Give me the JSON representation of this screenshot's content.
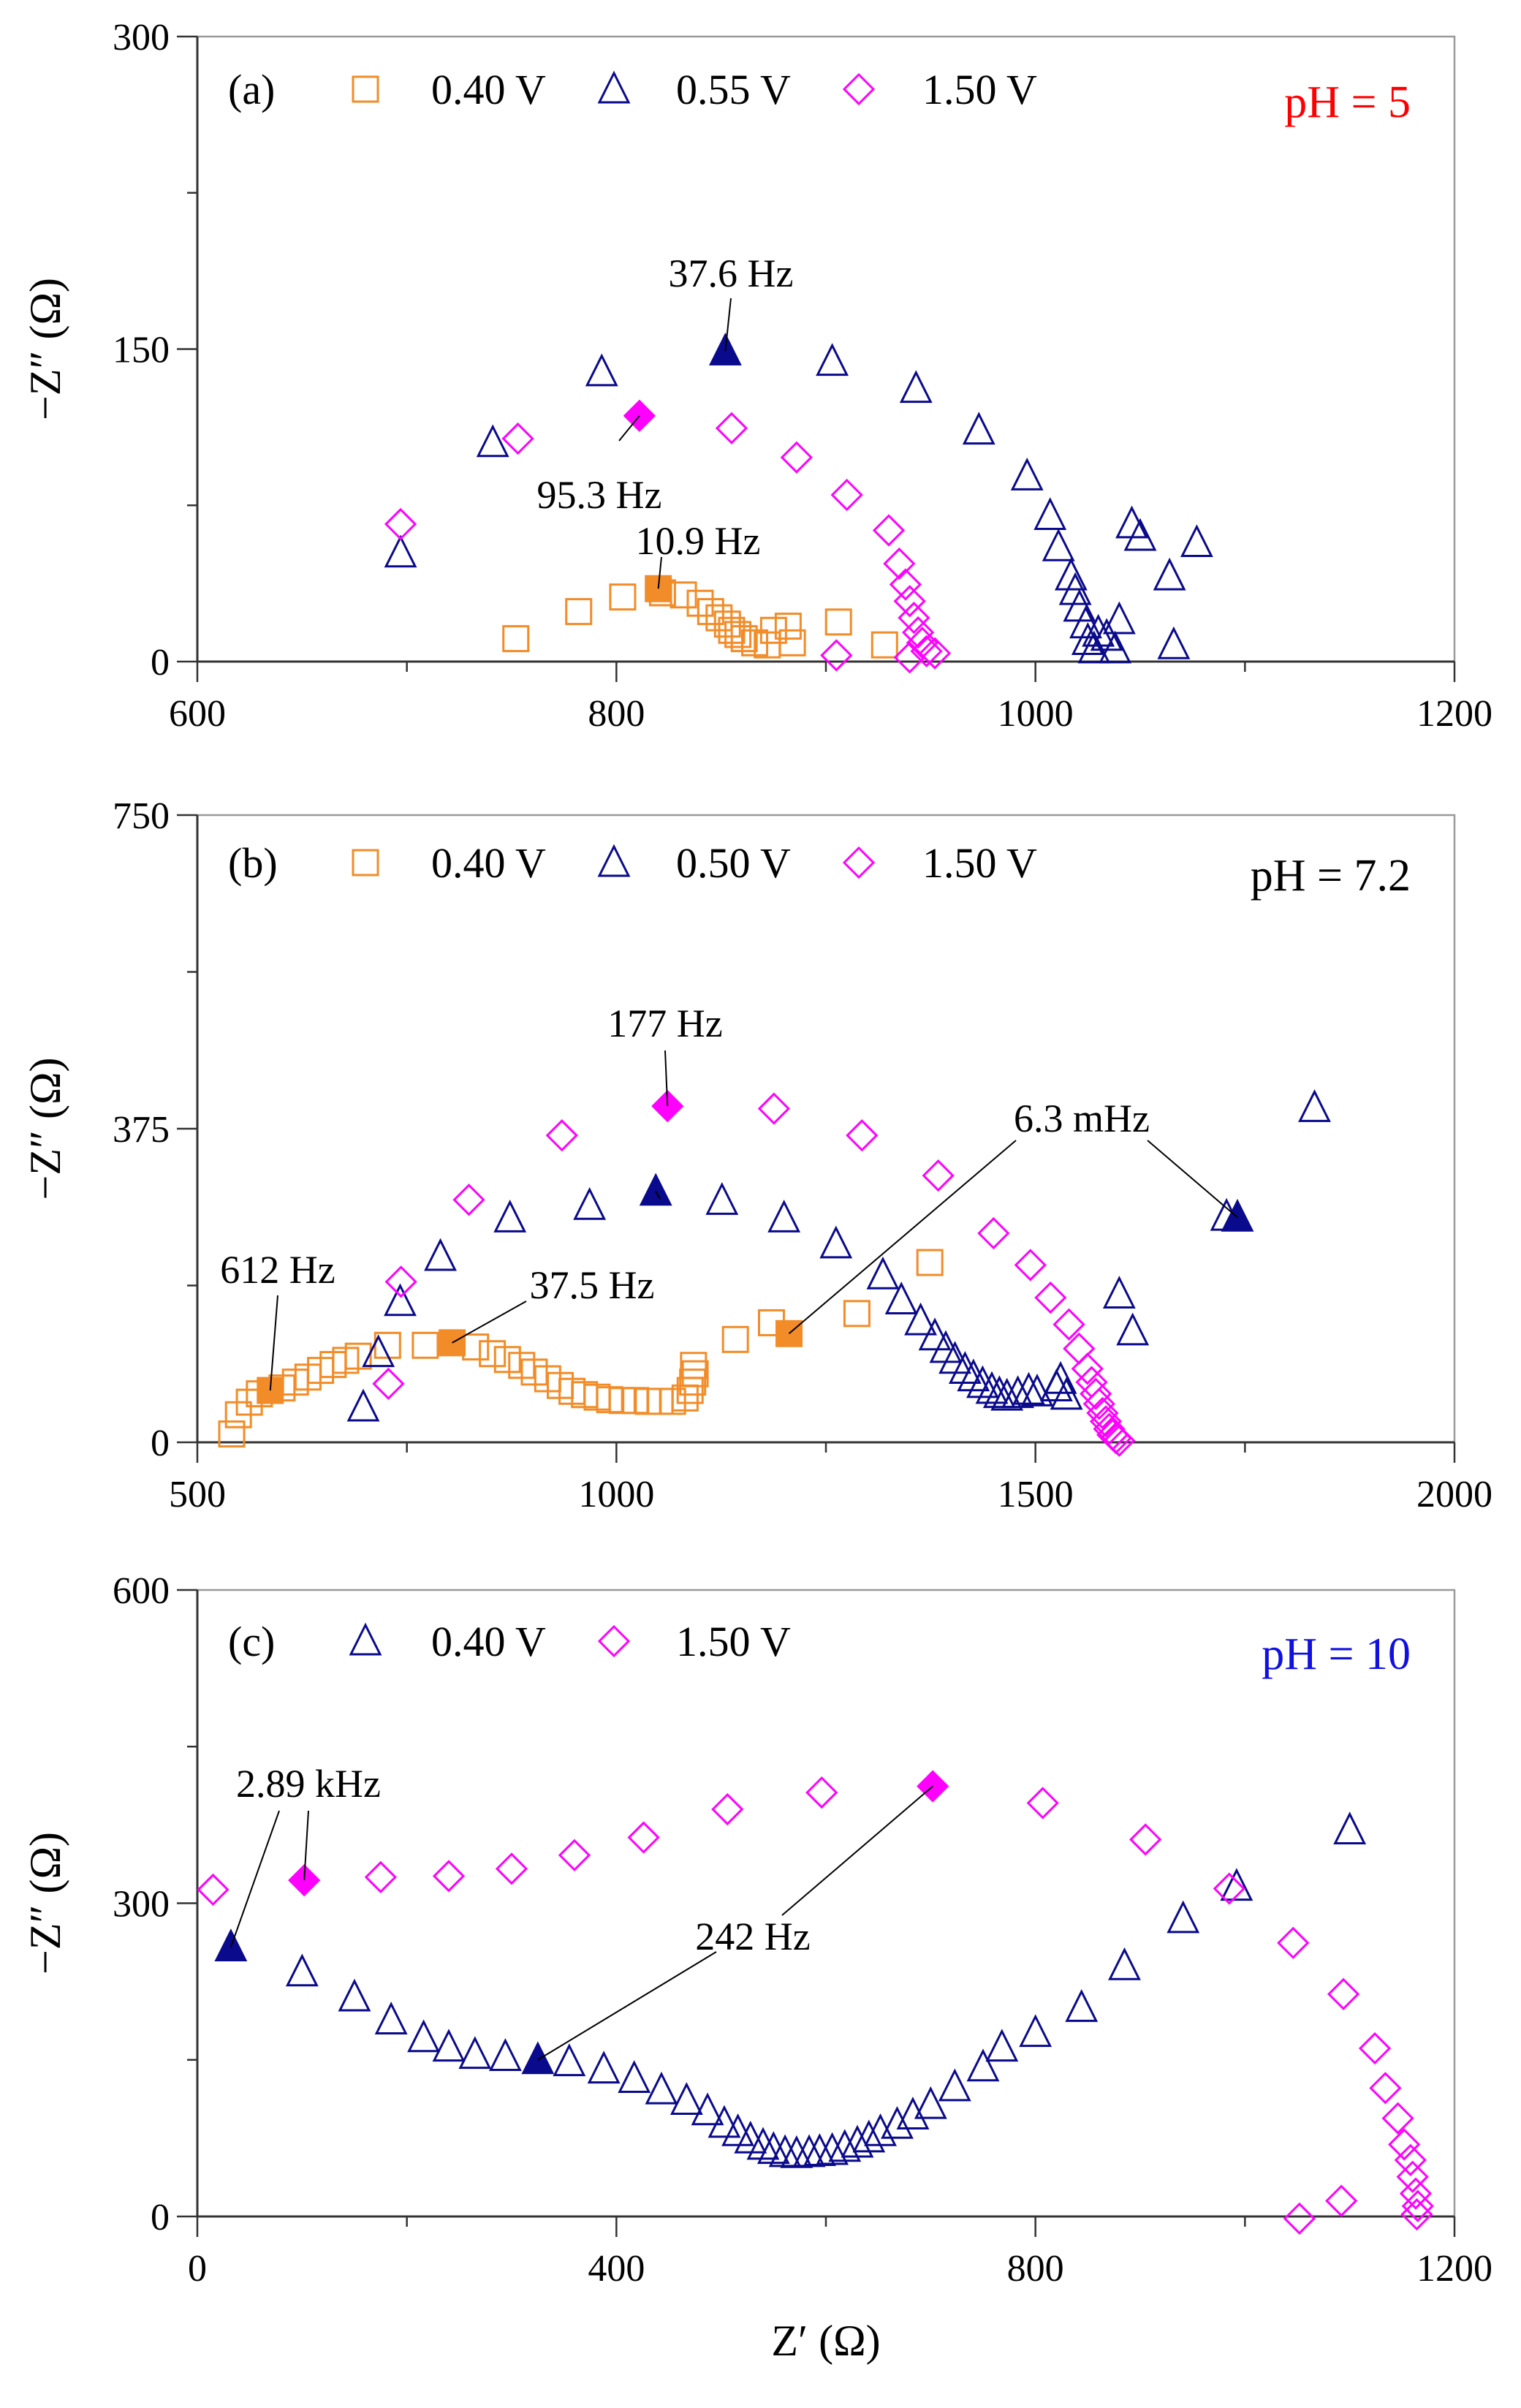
{
  "colors": {
    "orange": "#f28c28",
    "navy": "#0a0a8c",
    "magenta": "#ff00ff",
    "red": "#ff0000",
    "blue": "#1010e0",
    "black": "#000000"
  },
  "chart_data": [
    {
      "type": "scatter",
      "panel": "(a)",
      "ph": "pH = 5",
      "ph_color": "#ff0000",
      "xlabel": "",
      "ylabel": "−Z″ (Ω)",
      "xlim": [
        600,
        1200
      ],
      "ylim": [
        0,
        300
      ],
      "xticks": [
        600,
        800,
        1000,
        1200
      ],
      "yticks": [
        0,
        150,
        300
      ],
      "series": [
        {
          "name": "0.40 V",
          "marker": "square",
          "color": "#f28c28",
          "points": [
            [
              752,
              11
            ],
            [
              782,
              24
            ],
            [
              803,
              31
            ],
            [
              822,
              33
            ],
            [
              832,
              32
            ],
            [
              840,
              28
            ],
            [
              845,
              24
            ],
            [
              849,
              21
            ],
            [
              853,
              18
            ],
            [
              855,
              15
            ],
            [
              858,
              13
            ],
            [
              861,
              11
            ],
            [
              866,
              9
            ],
            [
              872,
              8
            ],
            [
              875,
              15
            ],
            [
              882,
              17
            ],
            [
              884,
              9
            ],
            [
              906,
              19
            ],
            [
              928,
              8
            ]
          ]
        },
        {
          "name": "0.55 V",
          "marker": "triangle",
          "color": "#0a0a8c",
          "points": [
            [
              697,
              52
            ],
            [
              741,
              105
            ],
            [
              793,
              139
            ],
            [
              903,
              144
            ],
            [
              943,
              131
            ],
            [
              973,
              111
            ],
            [
              996,
              89
            ],
            [
              1007,
              70
            ],
            [
              1011,
              55
            ],
            [
              1017,
              41
            ],
            [
              1019,
              34
            ],
            [
              1021,
              26
            ],
            [
              1024,
              18
            ],
            [
              1025,
              10
            ],
            [
              1028,
              6
            ],
            [
              1030,
              14
            ],
            [
              1034,
              12
            ],
            [
              1038,
              6
            ],
            [
              1040,
              20
            ],
            [
              1046,
              66
            ],
            [
              1050,
              60
            ],
            [
              1064,
              41
            ],
            [
              1066,
              8
            ],
            [
              1077,
              57
            ]
          ]
        },
        {
          "name": "1.50 V",
          "marker": "diamond",
          "color": "#ff00ff",
          "points": [
            [
              697,
              66
            ],
            [
              753,
              107
            ],
            [
              855,
              112
            ],
            [
              886,
              98
            ],
            [
              910,
              80
            ],
            [
              930,
              63
            ],
            [
              935,
              47
            ],
            [
              938,
              37
            ],
            [
              940,
              29
            ],
            [
              942,
              21
            ],
            [
              944,
              14
            ],
            [
              946,
              9
            ],
            [
              948,
              5
            ],
            [
              952,
              4
            ],
            [
              940,
              2
            ],
            [
              905,
              3
            ]
          ]
        }
      ],
      "highlights": [
        {
          "x": 820,
          "y": 35,
          "marker": "square",
          "color": "#f28c28",
          "label": "10.9 Hz"
        },
        {
          "x": 852,
          "y": 149,
          "marker": "triangle",
          "color": "#0a0a8c",
          "label": "37.6 Hz"
        },
        {
          "x": 811,
          "y": 118,
          "marker": "diamond",
          "color": "#ff00ff",
          "label": "95.3 Hz"
        }
      ]
    },
    {
      "type": "scatter",
      "panel": "(b)",
      "ph": "pH = 7.2",
      "ph_color": "#000000",
      "xlabel": "",
      "ylabel": "−Z″ (Ω)",
      "xlim": [
        500,
        2000
      ],
      "ylim": [
        0,
        750
      ],
      "xticks": [
        500,
        1000,
        1500,
        2000
      ],
      "yticks": [
        0,
        375,
        750
      ],
      "series": [
        {
          "name": "0.40 V",
          "marker": "square",
          "color": "#f28c28",
          "points": [
            [
              541,
              10
            ],
            [
              549,
              33
            ],
            [
              562,
              48
            ],
            [
              574,
              58
            ],
            [
              601,
              65
            ],
            [
              617,
              72
            ],
            [
              632,
              78
            ],
            [
              647,
              86
            ],
            [
              662,
              93
            ],
            [
              677,
              98
            ],
            [
              692,
              103
            ],
            [
              727,
              116
            ],
            [
              772,
              116
            ],
            [
              832,
              114
            ],
            [
              852,
              106
            ],
            [
              870,
              99
            ],
            [
              887,
              92
            ],
            [
              902,
              84
            ],
            [
              918,
              76
            ],
            [
              933,
              68
            ],
            [
              947,
              61
            ],
            [
              962,
              57
            ],
            [
              977,
              54
            ],
            [
              992,
              51
            ],
            [
              1007,
              50
            ],
            [
              1023,
              50
            ],
            [
              1038,
              49
            ],
            [
              1052,
              49
            ],
            [
              1067,
              49
            ],
            [
              1082,
              53
            ],
            [
              1088,
              62
            ],
            [
              1091,
              72
            ],
            [
              1094,
              82
            ],
            [
              1092,
              92
            ],
            [
              1142,
              123
            ],
            [
              1185,
              143
            ],
            [
              1287,
              154
            ],
            [
              1374,
              215
            ]
          ]
        },
        {
          "name": "0.50 V",
          "marker": "triangle",
          "color": "#0a0a8c",
          "points": [
            [
              698,
              42
            ],
            [
              716,
              107
            ],
            [
              742,
              168
            ],
            [
              790,
              222
            ],
            [
              873,
              268
            ],
            [
              968,
              283
            ],
            [
              1126,
              289
            ],
            [
              1200,
              268
            ],
            [
              1262,
              237
            ],
            [
              1318,
              200
            ],
            [
              1340,
              170
            ],
            [
              1363,
              145
            ],
            [
              1380,
              127
            ],
            [
              1393,
              112
            ],
            [
              1404,
              99
            ],
            [
              1416,
              87
            ],
            [
              1426,
              78
            ],
            [
              1437,
              70
            ],
            [
              1448,
              63
            ],
            [
              1457,
              58
            ],
            [
              1466,
              55
            ],
            [
              1479,
              58
            ],
            [
              1492,
              62
            ],
            [
              1502,
              60
            ],
            [
              1525,
              66
            ],
            [
              1530,
              75
            ],
            [
              1537,
              56
            ],
            [
              1600,
              177
            ],
            [
              1616,
              133
            ],
            [
              1728,
              270
            ],
            [
              1833,
              400
            ]
          ]
        },
        {
          "name": "1.50 V",
          "marker": "diamond",
          "color": "#ff00ff",
          "points": [
            [
              728,
              70
            ],
            [
              743,
              192
            ],
            [
              824,
              290
            ],
            [
              935,
              367
            ],
            [
              1188,
              399
            ],
            [
              1293,
              367
            ],
            [
              1384,
              319
            ],
            [
              1450,
              250
            ],
            [
              1494,
              212
            ],
            [
              1518,
              173
            ],
            [
              1540,
              141
            ],
            [
              1552,
              112
            ],
            [
              1562,
              88
            ],
            [
              1567,
              72
            ],
            [
              1572,
              58
            ],
            [
              1576,
              46
            ],
            [
              1580,
              35
            ],
            [
              1584,
              25
            ],
            [
              1588,
              16
            ],
            [
              1592,
              9
            ],
            [
              1596,
              5
            ],
            [
              1600,
              2
            ]
          ]
        }
      ],
      "highlights": [
        {
          "x": 587,
          "y": 62,
          "marker": "square",
          "color": "#f28c28",
          "label": "612 Hz"
        },
        {
          "x": 804,
          "y": 119,
          "marker": "square",
          "color": "#f28c28",
          "label": "37.5 Hz"
        },
        {
          "x": 1206,
          "y": 130,
          "marker": "square",
          "color": "#f28c28",
          "label": ""
        },
        {
          "x": 1047,
          "y": 300,
          "marker": "triangle",
          "color": "#0a0a8c",
          "label": ""
        },
        {
          "x": 1741,
          "y": 269,
          "marker": "triangle",
          "color": "#0a0a8c",
          "label": ""
        },
        {
          "x": 1061,
          "y": 402,
          "marker": "diamond",
          "color": "#ff00ff",
          "label": "177 Hz"
        }
      ],
      "annotations": [
        "6.3 mHz"
      ]
    },
    {
      "type": "scatter",
      "panel": "(c)",
      "ph": "pH = 10",
      "ph_color": "#1010e0",
      "xlabel": "Z′ (Ω)",
      "ylabel": "−Z″ (Ω)",
      "xlim": [
        0,
        1200
      ],
      "ylim": [
        0,
        600
      ],
      "xticks": [
        0,
        400,
        800,
        1200
      ],
      "yticks": [
        0,
        300,
        600
      ],
      "series": [
        {
          "name": "0.40 V",
          "marker": "triangle",
          "color": "#0a0a8c",
          "points": [
            [
              100,
              234
            ],
            [
              150,
              210
            ],
            [
              185,
              188
            ],
            [
              216,
              171
            ],
            [
              240,
              162
            ],
            [
              265,
              155
            ],
            [
              294,
              153
            ],
            [
              355,
              148
            ],
            [
              388,
              141
            ],
            [
              417,
              132
            ],
            [
              443,
              121
            ],
            [
              467,
              111
            ],
            [
              487,
              101
            ],
            [
              503,
              89
            ],
            [
              516,
              81
            ],
            [
              528,
              74
            ],
            [
              540,
              68
            ],
            [
              550,
              64
            ],
            [
              561,
              61
            ],
            [
              572,
              60
            ],
            [
              584,
              61
            ],
            [
              594,
              62
            ],
            [
              606,
              63
            ],
            [
              618,
              66
            ],
            [
              630,
              70
            ],
            [
              641,
              75
            ],
            [
              652,
              81
            ],
            [
              668,
              88
            ],
            [
              683,
              97
            ],
            [
              700,
              107
            ],
            [
              723,
              124
            ],
            [
              750,
              143
            ],
            [
              768,
              162
            ],
            [
              800,
              176
            ],
            [
              844,
              200
            ],
            [
              885,
              240
            ],
            [
              941,
              285
            ],
            [
              992,
              316
            ],
            [
              1100,
              370
            ]
          ]
        },
        {
          "name": "1.50 V",
          "marker": "diamond",
          "color": "#ff00ff",
          "points": [
            [
              15,
              313
            ],
            [
              175,
              325
            ],
            [
              240,
              326
            ],
            [
              300,
              333
            ],
            [
              360,
              346
            ],
            [
              426,
              363
            ],
            [
              506,
              390
            ],
            [
              596,
              406
            ],
            [
              807,
              396
            ],
            [
              905,
              361
            ],
            [
              985,
              314
            ],
            [
              1046,
              262
            ],
            [
              1094,
              213
            ],
            [
              1124,
              161
            ],
            [
              1134,
              123
            ],
            [
              1146,
              94
            ],
            [
              1152,
              69
            ],
            [
              1158,
              54
            ],
            [
              1160,
              38
            ],
            [
              1163,
              22
            ],
            [
              1165,
              10
            ],
            [
              1164,
              2
            ],
            [
              1092,
              15
            ],
            [
              1052,
              -2
            ]
          ]
        }
      ],
      "highlights": [
        {
          "x": 32,
          "y": 258,
          "marker": "triangle",
          "color": "#0a0a8c",
          "label": "2.89 kHz"
        },
        {
          "x": 325,
          "y": 150,
          "marker": "triangle",
          "color": "#0a0a8c",
          "label": "242 Hz"
        },
        {
          "x": 102,
          "y": 322,
          "marker": "diamond",
          "color": "#ff00ff",
          "label": ""
        },
        {
          "x": 702,
          "y": 412,
          "marker": "diamond",
          "color": "#ff00ff",
          "label": ""
        }
      ]
    }
  ]
}
